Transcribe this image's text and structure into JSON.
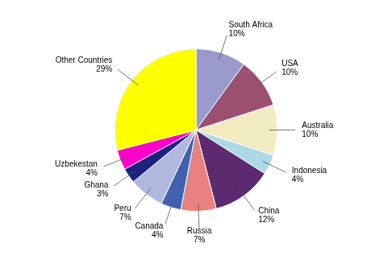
{
  "chart_data": {
    "type": "pie",
    "categories": [
      "South Africa",
      "USA",
      "Australia",
      "Indonesia",
      "China",
      "Russia",
      "Canada",
      "Peru",
      "Ghana",
      "Uzbekestan",
      "Other Countries"
    ],
    "values": [
      10,
      10,
      10,
      4,
      12,
      7,
      4,
      7,
      3,
      4,
      29
    ],
    "value_labels": [
      "10%",
      "10%",
      "10%",
      "4%",
      "12%",
      "7%",
      "4%",
      "7%",
      "3%",
      "4%",
      "29%"
    ],
    "colors": [
      "#9999cc",
      "#9b5070",
      "#f0ecc0",
      "#add8e6",
      "#5c2a6e",
      "#e88080",
      "#4060b0",
      "#b0b8e0",
      "#1a237e",
      "#ff00cc",
      "#ffff00"
    ],
    "data_labels": true
  }
}
